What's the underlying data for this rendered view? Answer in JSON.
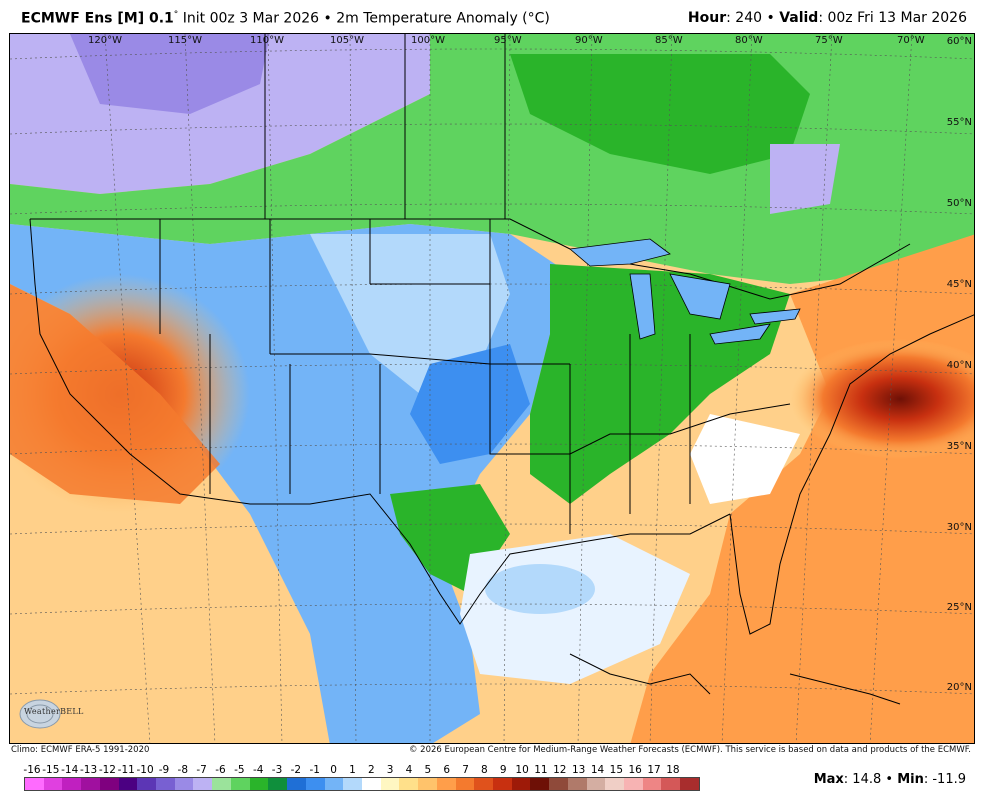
{
  "header": {
    "model": "ECMWF Ens [M] 0.1",
    "degree": "°",
    "init": " Init 00z 3 Mar 2026 • 2m Temperature Anomaly (°C)",
    "hour_label": "Hour",
    "hour_value": ": 240 • ",
    "valid_label": "Valid",
    "valid_value": ": 00z Fri 13 Mar 2026"
  },
  "map": {
    "lon_labels": [
      "120°W",
      "115°W",
      "110°W",
      "105°W",
      "100°W",
      "95°W",
      "90°W",
      "85°W",
      "80°W",
      "75°W",
      "70°W"
    ],
    "lat_labels": [
      "60°N",
      "55°N",
      "50°N",
      "45°N",
      "40°N",
      "35°N",
      "30°N",
      "25°N",
      "20°N"
    ],
    "logo_text": "WeatherBELL"
  },
  "credits": {
    "climo": "Climo: ECMWF ERA-5 1991-2020",
    "copyright": "© 2026 European Centre for Medium-Range Weather Forecasts (ECMWF). This service is based on data and products of the ECMWF."
  },
  "colorbar": {
    "ticks": [
      "-16",
      "-15",
      "-14",
      "-13",
      "-12",
      "-11",
      "-10",
      "-9",
      "-8",
      "-7",
      "-6",
      "-5",
      "-4",
      "-3",
      "-2",
      "-1",
      "0",
      "1",
      "2",
      "3",
      "4",
      "5",
      "6",
      "7",
      "8",
      "9",
      "10",
      "11",
      "12",
      "13",
      "14",
      "15",
      "16",
      "17",
      "18"
    ],
    "colors": [
      "#ff6bff",
      "#e040e0",
      "#c020c0",
      "#a0109f",
      "#7f007f",
      "#4b0082",
      "#5c36b5",
      "#7860d2",
      "#9a8ae6",
      "#bdb2f3",
      "#9be39b",
      "#5fd35f",
      "#2ab42a",
      "#0f8f3c",
      "#1f6fd6",
      "#3d8ff0",
      "#73b4f7",
      "#b3d9fb",
      "#ffffff",
      "#fff7c2",
      "#ffe08a",
      "#ffc36b",
      "#ff9e4a",
      "#f47a2e",
      "#e0521c",
      "#c83010",
      "#9e1a08",
      "#6e1006",
      "#8f4a3a",
      "#b07a6a",
      "#d4aea2",
      "#f0cfc6",
      "#f7b3b3",
      "#ee8585",
      "#d45858",
      "#a82d2d"
    ]
  },
  "stats": {
    "max_label": "Max",
    "max_value": ": 14.8 • ",
    "min_label": "Min",
    "min_value": ": -11.9"
  }
}
